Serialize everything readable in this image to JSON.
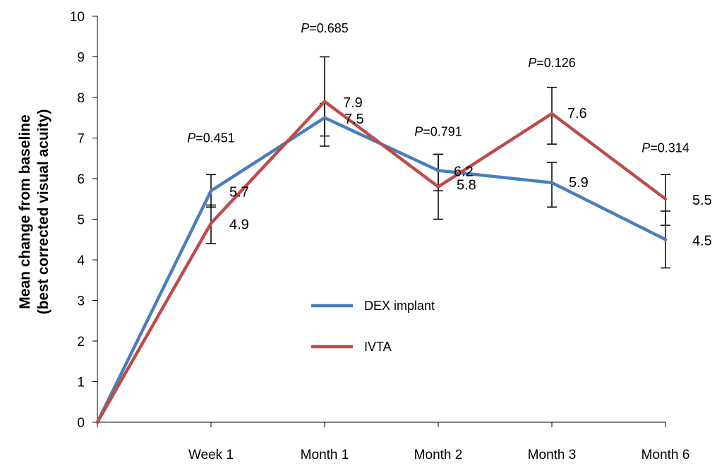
{
  "chart_data": {
    "type": "line",
    "categories": [
      "",
      "Week 1",
      "Month 1",
      "Month 2",
      "Month 3",
      "Month 6"
    ],
    "ylabel_line1": "Mean change from baseline",
    "ylabel_line2": "(best corrected visual acuity)",
    "ylim": [
      0,
      10
    ],
    "yticks": [
      "0",
      "1",
      "2",
      "3",
      "4",
      "5",
      "6",
      "7",
      "8",
      "9",
      "10"
    ],
    "grid": false,
    "legend_position": "center",
    "series": [
      {
        "name": "DEX implant",
        "color": "#4a7ebb",
        "values": [
          0,
          5.7,
          7.5,
          6.2,
          5.9,
          4.5
        ],
        "labels": [
          "",
          "5.7",
          "7.5",
          "6.2",
          "5.9",
          "4.5"
        ],
        "err_low": [
          null,
          4.4,
          6.8,
          5.0,
          5.3,
          3.8
        ],
        "err_high": [
          null,
          6.1,
          9.0,
          6.6,
          6.4,
          5.2
        ]
      },
      {
        "name": "IVTA",
        "color": "#be4b48",
        "values": [
          0,
          4.9,
          7.9,
          5.8,
          7.6,
          5.5
        ],
        "labels": [
          "",
          "4.9",
          "7.9",
          "5.8",
          "7.6",
          "5.5"
        ],
        "err_low": [
          null,
          5.3,
          7.05,
          5.7,
          6.85,
          4.85
        ],
        "err_high": [
          null,
          5.35,
          7.85,
          6.6,
          8.25,
          6.1
        ]
      }
    ],
    "p_values": [
      {
        "prefix": "P",
        "value": "=0.451"
      },
      {
        "prefix": "P",
        "value": "=0.685"
      },
      {
        "prefix": "P",
        "value": "=0.791"
      },
      {
        "prefix": "P",
        "value": "=0.126"
      },
      {
        "prefix": "P",
        "value": "=0.314"
      }
    ]
  }
}
